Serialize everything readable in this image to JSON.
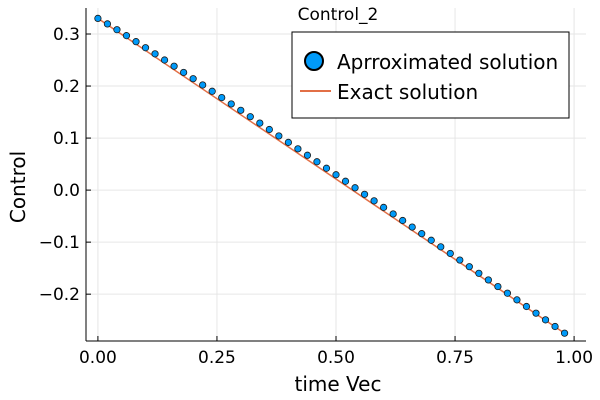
{
  "chart_data": {
    "type": "scatter",
    "title": "Control_2",
    "xlabel": "time Vec",
    "ylabel": "Control",
    "xlim": [
      -0.025,
      1.025
    ],
    "ylim": [
      -0.29,
      0.35
    ],
    "xticks": [
      0.0,
      0.25,
      0.5,
      0.75,
      1.0
    ],
    "xtick_labels": [
      "0.00",
      "0.25",
      "0.50",
      "0.75",
      "1.00"
    ],
    "yticks": [
      -0.2,
      -0.1,
      0.0,
      0.1,
      0.2,
      0.3
    ],
    "ytick_labels": [
      "−0.2",
      "−0.1",
      "0.0",
      "0.1",
      "0.2",
      "0.3"
    ],
    "grid": true,
    "legend_position": "top-right",
    "series": [
      {
        "name": "Aprroximated solution",
        "kind": "scatter",
        "color": "#009af9",
        "x_start": 0.0,
        "x_step": 0.02,
        "count": 50,
        "y_start": 0.33,
        "y_end": -0.275
      },
      {
        "name": "Exact solution",
        "kind": "line",
        "color": "#e26f46",
        "x": [
          0.0,
          0.98
        ],
        "y": [
          0.33,
          -0.275
        ]
      }
    ]
  }
}
